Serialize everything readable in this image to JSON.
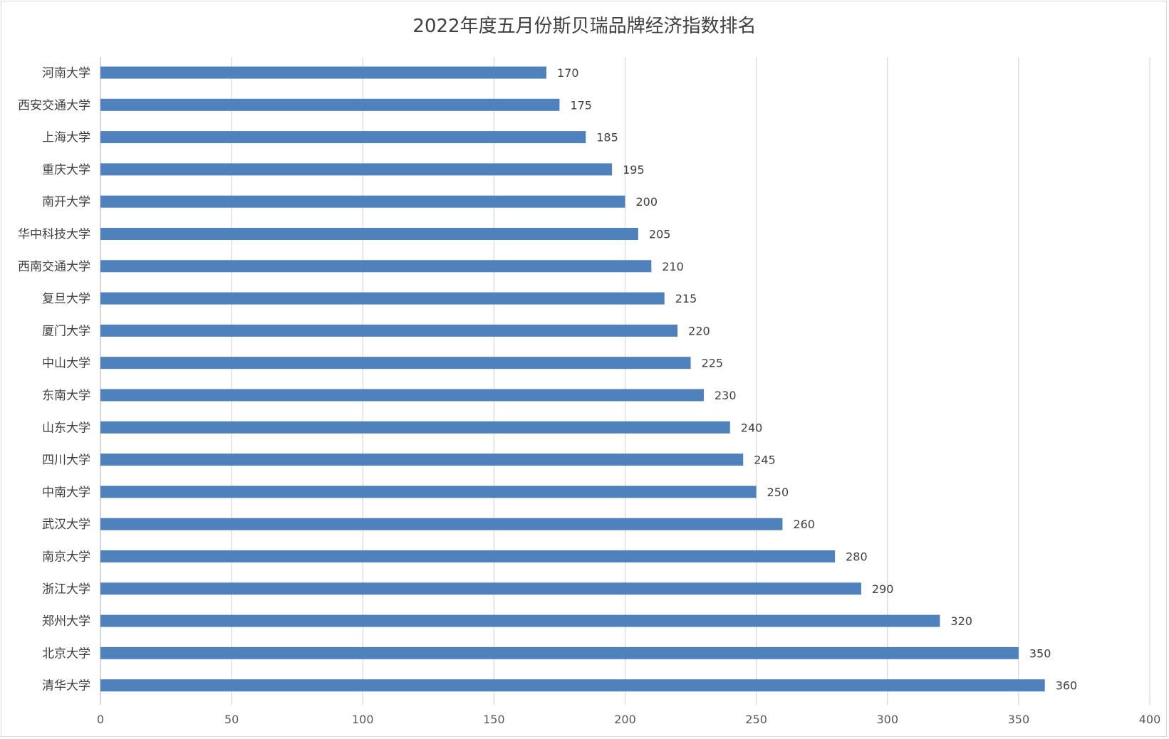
{
  "title": "2022年度五月份斯贝瑞品牌经济指数排名",
  "colors": {
    "bar": "#4f81bd",
    "grid": "#d9d9d9",
    "text": "#404040"
  },
  "chart_data": {
    "type": "bar",
    "orientation": "horizontal",
    "title": "2022年度五月份斯贝瑞品牌经济指数排名",
    "xlabel": "",
    "ylabel": "",
    "xlim": [
      0,
      400
    ],
    "x_ticks": [
      0,
      50,
      100,
      150,
      200,
      250,
      300,
      350,
      400
    ],
    "grid": "vertical",
    "legend": "none",
    "categories": [
      "河南大学",
      "西安交通大学",
      "上海大学",
      "重庆大学",
      "南开大学",
      "华中科技大学",
      "西南交通大学",
      "复旦大学",
      "厦门大学",
      "中山大学",
      "东南大学",
      "山东大学",
      "四川大学",
      "中南大学",
      "武汉大学",
      "南京大学",
      "浙江大学",
      "郑州大学",
      "北京大学",
      "清华大学"
    ],
    "values": [
      170,
      175,
      185,
      195,
      200,
      205,
      210,
      215,
      220,
      225,
      230,
      240,
      245,
      250,
      260,
      280,
      290,
      320,
      350,
      360
    ]
  }
}
